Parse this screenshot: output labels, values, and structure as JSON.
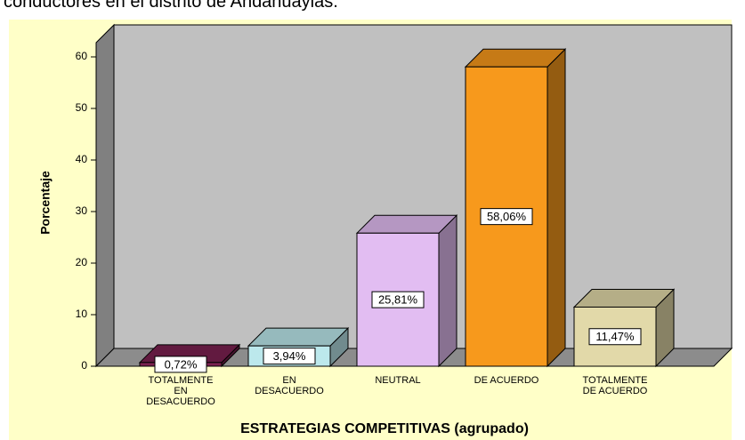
{
  "caption": "conductores en el distrito de Andahuaylas.",
  "chart_data": {
    "type": "bar3d",
    "ylabel": "Porcentaje",
    "xlabel": "ESTRATEGIAS COMPETITIVAS (agrupado)",
    "categories": [
      "TOTALMENTE EN DESACUERDO",
      "EN DESACUERDO",
      "NEUTRAL",
      "DE ACUERDO",
      "TOTALMENTE DE ACUERDO"
    ],
    "values": [
      0.72,
      3.94,
      25.81,
      58.06,
      11.47
    ],
    "value_labels": [
      "0,72%",
      "3,94%",
      "25,81%",
      "58,06%",
      "11,47%"
    ],
    "colors": [
      "#7b2150",
      "#bce8ec",
      "#e2bdf2",
      "#f7991c",
      "#e2d9a9"
    ],
    "ylim": [
      0,
      63
    ],
    "yticks": [
      0,
      10,
      20,
      30,
      40,
      50,
      60
    ]
  }
}
